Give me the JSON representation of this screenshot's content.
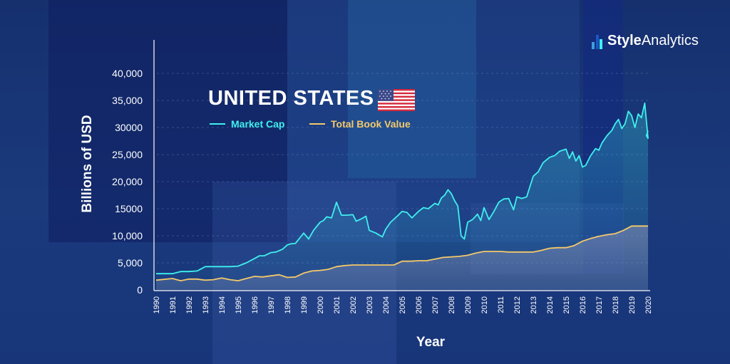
{
  "brand": {
    "name_bold": "Style",
    "name_regular": "Analytics"
  },
  "chart_data": {
    "type": "line",
    "title": "UNITED STATES",
    "xlabel": "Year",
    "ylabel": "Billions of USD",
    "ylim": [
      0,
      45000
    ],
    "xlim": [
      1990,
      2020
    ],
    "y_ticks": [
      "0",
      "5,000",
      "10,000",
      "15000",
      "20,000",
      "25,000",
      "30000",
      "35,000",
      "40,000"
    ],
    "x_ticks": [
      "1990",
      "1991",
      "1992",
      "1993",
      "1994",
      "1995",
      "1996",
      "1997",
      "1998",
      "1999",
      "2000",
      "2001",
      "2002",
      "2003",
      "2004",
      "2005",
      "2006",
      "2007",
      "2008",
      "2009",
      "2010",
      "2011",
      "2012",
      "2013",
      "2014",
      "2015",
      "2016",
      "2017",
      "2018",
      "2019",
      "2020"
    ],
    "grid": true,
    "legend_position": "top-left",
    "series": [
      {
        "name": "Market Cap",
        "color": "#3ff0ee",
        "x": [
          1990,
          1991,
          1991.5,
          1992,
          1992.5,
          1993,
          1994,
          1994.5,
          1995,
          1995.5,
          1996,
          1996.3,
          1996.6,
          1997,
          1997.3,
          1997.7,
          1998,
          1998.2,
          1998.5,
          1999,
          1999.3,
          1999.6,
          2000,
          2000.2,
          2000.4,
          2000.7,
          2001,
          2001.3,
          2001.6,
          2002,
          2002.2,
          2002.5,
          2002.8,
          2003,
          2003.4,
          2003.8,
          2004,
          2004.3,
          2004.7,
          2005,
          2005.3,
          2005.6,
          2006,
          2006.3,
          2006.6,
          2007,
          2007.2,
          2007.4,
          2007.6,
          2007.8,
          2008,
          2008.2,
          2008.4,
          2008.6,
          2008.8,
          2009,
          2009.3,
          2009.6,
          2009.8,
          2010,
          2010.3,
          2010.6,
          2010.9,
          2011.2,
          2011.5,
          2011.8,
          2012,
          2012.3,
          2012.6,
          2013,
          2013.3,
          2013.6,
          2014,
          2014.3,
          2014.6,
          2015,
          2015.2,
          2015.4,
          2015.6,
          2015.8,
          2016,
          2016.2,
          2016.5,
          2016.8,
          2017,
          2017.2,
          2017.5,
          2017.8,
          2018,
          2018.2,
          2018.4,
          2018.6,
          2018.8,
          2019,
          2019.2,
          2019.4,
          2019.6,
          2019.8,
          2020
        ],
        "y": [
          3000,
          3000,
          3400,
          3400,
          3500,
          4300,
          4300,
          4300,
          4400,
          5000,
          5800,
          6300,
          6300,
          6900,
          7000,
          7500,
          8300,
          8500,
          8600,
          10500,
          9400,
          11000,
          12500,
          12800,
          13500,
          13300,
          16200,
          13800,
          13800,
          13900,
          12700,
          13100,
          13600,
          11000,
          10500,
          9800,
          11200,
          12500,
          13600,
          14500,
          14300,
          13300,
          14500,
          15200,
          15000,
          16000,
          15700,
          17000,
          17500,
          18500,
          17800,
          16500,
          15500,
          10000,
          9400,
          12500,
          13000,
          14000,
          12800,
          15200,
          13000,
          14500,
          16200,
          16800,
          16900,
          14800,
          17200,
          16900,
          17200,
          21000,
          21800,
          23500,
          24500,
          24800,
          25600,
          26000,
          24300,
          25500,
          23800,
          24800,
          22700,
          23000,
          24800,
          26100,
          25800,
          27200,
          28500,
          29500,
          30700,
          31500,
          29800,
          30700,
          33000,
          32200,
          30000,
          32500,
          31800,
          34500,
          28000
        ],
        "extra_points": [
          [
            2019.9,
            28500
          ],
          [
            2020,
            29400
          ]
        ]
      },
      {
        "name": "Total Book Value",
        "color": "#f5c96a",
        "x": [
          1990,
          1991,
          1991.5,
          1992,
          1992.5,
          1993,
          1993.5,
          1994,
          1994.5,
          1995,
          1995.5,
          1996,
          1996.5,
          1997,
          1997.5,
          1998,
          1998.5,
          1999,
          1999.5,
          2000,
          2000.5,
          2001,
          2001.5,
          2002,
          2002.5,
          2003,
          2003.5,
          2004,
          2004.5,
          2005,
          2005.5,
          2006,
          2006.5,
          2007,
          2007.5,
          2008,
          2008.5,
          2009,
          2009.5,
          2010,
          2010.5,
          2011,
          2011.5,
          2012,
          2012.5,
          2013,
          2013.5,
          2014,
          2014.5,
          2015,
          2015.5,
          2016,
          2016.5,
          2017,
          2017.5,
          2018,
          2018.5,
          2019,
          2019.5,
          2020
        ],
        "y": [
          1800,
          2100,
          1700,
          2000,
          2000,
          1800,
          1900,
          2200,
          1900,
          1700,
          2100,
          2500,
          2400,
          2600,
          2800,
          2300,
          2400,
          3100,
          3500,
          3600,
          3800,
          4300,
          4500,
          4600,
          4600,
          4600,
          4600,
          4600,
          4600,
          5300,
          5300,
          5400,
          5400,
          5700,
          6000,
          6100,
          6200,
          6400,
          6800,
          7100,
          7100,
          7100,
          7000,
          7000,
          7000,
          7000,
          7300,
          7700,
          7800,
          7800,
          8200,
          9000,
          9500,
          9900,
          10200,
          10400,
          11000,
          11800,
          11800,
          11800
        ]
      }
    ]
  }
}
